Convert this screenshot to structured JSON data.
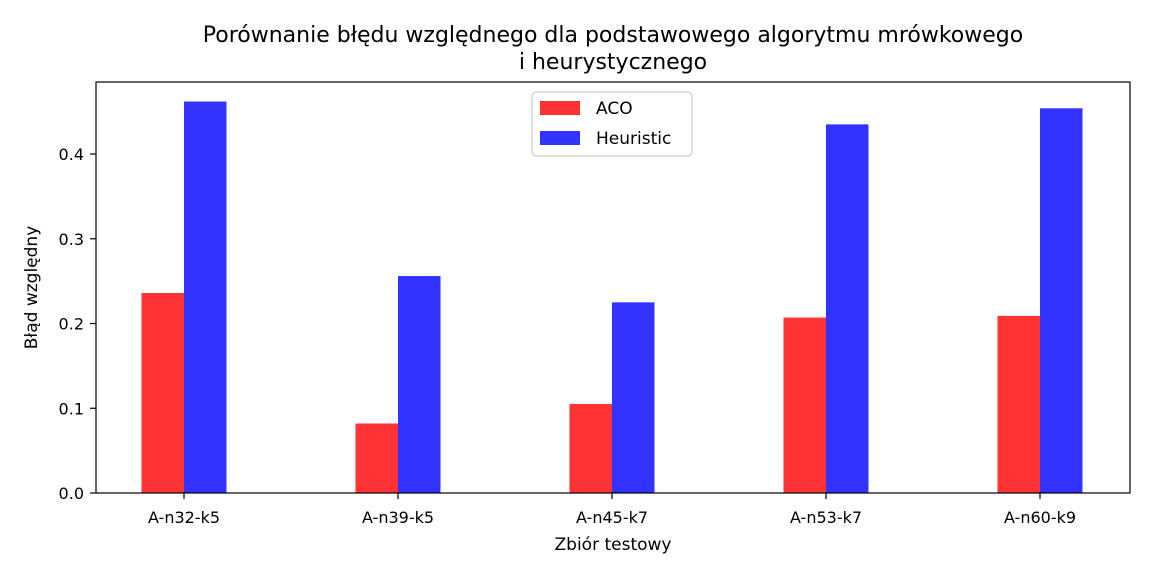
{
  "chart_data": {
    "type": "bar",
    "title": "Porównanie błędu względnego dla podstawowego algorytmu mrówkowego\ni heurystycznego",
    "xlabel": "Zbiór testowy",
    "ylabel": "Błąd względny",
    "categories": [
      "A-n32-k5",
      "A-n39-k5",
      "A-n45-k7",
      "A-n53-k7",
      "A-n60-k9"
    ],
    "series": [
      {
        "name": "ACO",
        "color": "#ff3333",
        "values": [
          0.236,
          0.082,
          0.105,
          0.207,
          0.209
        ]
      },
      {
        "name": "Heuristic",
        "color": "#3333ff",
        "values": [
          0.462,
          0.256,
          0.225,
          0.435,
          0.454
        ]
      }
    ],
    "ylim": [
      0,
      0.485
    ],
    "yticks": [
      "0.0",
      "0.1",
      "0.2",
      "0.3",
      "0.4"
    ],
    "grid": false,
    "legend_position": "upper-center"
  }
}
